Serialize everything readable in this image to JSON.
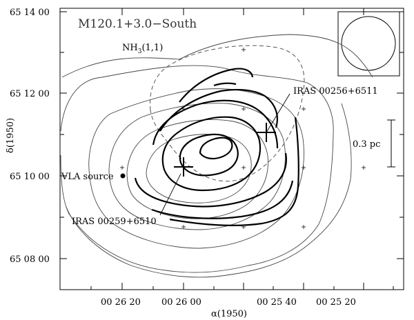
{
  "figure": {
    "title": "M120.1+3.0−South",
    "tracer": "NH",
    "tracer_sub": "3",
    "tracer_suffix": "(1,1)"
  },
  "axes": {
    "xlabel": "α(1950)",
    "ylabel": "δ(1950)",
    "x_ticks": [
      "00 26 20",
      "00 26 00",
      "00 25 40",
      "00 25 20"
    ],
    "y_ticks": [
      "65 14 00",
      "65 12 00",
      "65 10 00",
      "65 08 00"
    ]
  },
  "annotations": {
    "iras_north": "IRAS 00256+6511",
    "iras_south": "IRAS 00259+6510",
    "vla": "VLA source",
    "scale_bar": "0.3 pc"
  }
}
